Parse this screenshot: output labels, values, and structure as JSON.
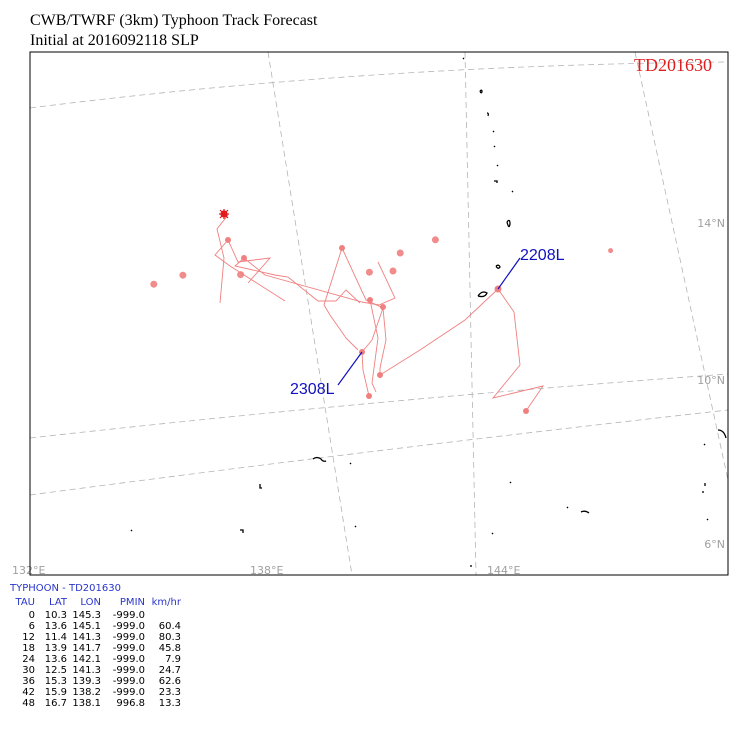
{
  "header": {
    "line1": "CWB/TWRF (3km) Typhoon Track Forecast",
    "line2": "Initial at 2016092118  SLP"
  },
  "map": {
    "storm_name": "TD201630",
    "lat_labels": [
      "14°N",
      "10°N",
      "6°N"
    ],
    "lon_labels": [
      "132°E",
      "138°E",
      "144°E"
    ],
    "track_color": "#f08080",
    "label_color": "#1010c0",
    "annotations": [
      {
        "text": "2208L",
        "lat": 12.5,
        "lon": 141.3
      },
      {
        "text": "2308L",
        "lat": 15.3,
        "lon": 139.3
      }
    ]
  },
  "chart_data": {
    "type": "line",
    "title": "TD201630",
    "x_label": "LON",
    "y_label": "LAT",
    "columns": [
      "TAU",
      "LAT",
      "LON",
      "PMIN",
      "km/hr"
    ],
    "table_title": "TYPHOON  -  TD201630",
    "rows": [
      {
        "tau": "0",
        "lat": "10.3",
        "lon": "145.3",
        "pmin": "-999.0",
        "speed": ""
      },
      {
        "tau": "6",
        "lat": "13.6",
        "lon": "145.1",
        "pmin": "-999.0",
        "speed": "60.4"
      },
      {
        "tau": "12",
        "lat": "11.4",
        "lon": "141.3",
        "pmin": "-999.0",
        "speed": "80.3"
      },
      {
        "tau": "18",
        "lat": "13.9",
        "lon": "141.7",
        "pmin": "-999.0",
        "speed": "45.8"
      },
      {
        "tau": "24",
        "lat": "13.6",
        "lon": "142.1",
        "pmin": "-999.0",
        "speed": "7.9"
      },
      {
        "tau": "30",
        "lat": "12.5",
        "lon": "141.3",
        "pmin": "-999.0",
        "speed": "24.7"
      },
      {
        "tau": "36",
        "lat": "15.3",
        "lon": "139.3",
        "pmin": "-999.0",
        "speed": "62.6"
      },
      {
        "tau": "42",
        "lat": "15.9",
        "lon": "138.2",
        "pmin": "-999.0",
        "speed": "23.3"
      },
      {
        "tau": "48",
        "lat": "16.7",
        "lon": "138.1",
        "pmin": "996.8",
        "speed": "13.3"
      }
    ]
  }
}
